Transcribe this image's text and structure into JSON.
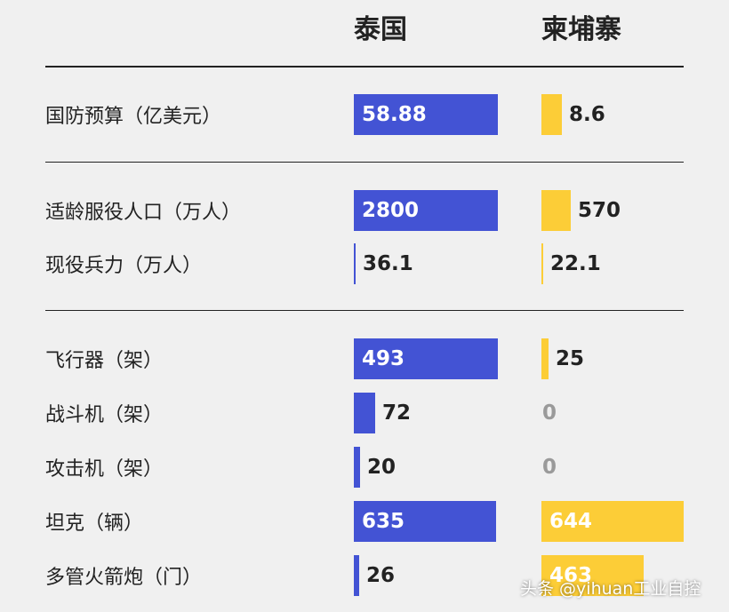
{
  "chart_data": {
    "type": "bar",
    "orientation": "horizontal",
    "series": [
      {
        "name": "泰国",
        "color": "#4353d4"
      },
      {
        "name": "柬埔寨",
        "color": "#fccd37"
      }
    ],
    "groups": [
      {
        "rows": [
          {
            "label": "国防预算（亿美元）",
            "thailand": "58.88",
            "cambodia": "8.6"
          }
        ]
      },
      {
        "rows": [
          {
            "label": "适龄服役人口（万人）",
            "thailand": "2800",
            "cambodia": "570"
          },
          {
            "label": "现役兵力（万人）",
            "thailand": "36.1",
            "cambodia": "22.1"
          }
        ]
      },
      {
        "rows": [
          {
            "label": "飞行器（架）",
            "thailand": "493",
            "cambodia": "25"
          },
          {
            "label": "战斗机（架）",
            "thailand": "72",
            "cambodia": "0"
          },
          {
            "label": "攻击机（架）",
            "thailand": "20",
            "cambodia": "0"
          },
          {
            "label": "坦克（辆）",
            "thailand": "635",
            "cambodia": "644"
          },
          {
            "label": "多管火箭炮（门）",
            "thailand": "26",
            "cambodia": "463"
          }
        ]
      }
    ],
    "bar_fill": {
      "国防预算（亿美元）": [
        1.0,
        0.146
      ],
      "适龄服役人口（万人）": [
        1.0,
        0.204
      ],
      "现役兵力（万人）": [
        0.012,
        0.006
      ],
      "飞行器（架）": [
        1.0,
        0.051
      ],
      "战斗机（架）": [
        0.146,
        0.0
      ],
      "攻击机（架）": [
        0.041,
        0.0
      ],
      "坦克（辆）": [
        0.986,
        1.0
      ],
      "多管火箭炮（门）": [
        0.04,
        0.72
      ]
    }
  },
  "watermark": "头条 @yihuan工业自控"
}
